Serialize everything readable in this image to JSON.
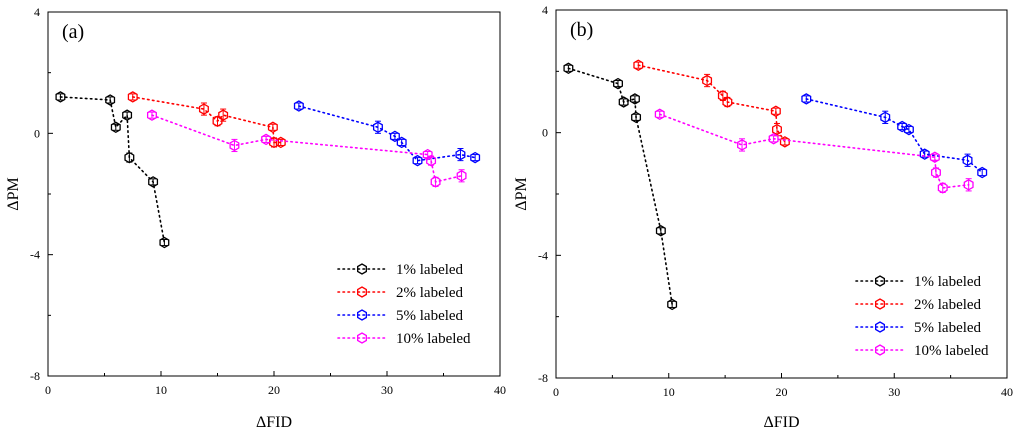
{
  "chart_data": [
    {
      "type": "scatter",
      "panel_label": "(a)",
      "xlabel": "ΔFID",
      "ylabel": "ΔPM",
      "xlim": [
        0,
        40
      ],
      "ylim": [
        -8,
        4
      ],
      "xticks": [
        "0",
        "10",
        "20",
        "30",
        "40"
      ],
      "yticks": [
        "-8",
        "-4",
        "0",
        "4"
      ],
      "legend_position": "bottom-right",
      "series": [
        {
          "name": "1% labeled",
          "color": "#000000",
          "x": [
            1.1,
            5.5,
            6.0,
            7.0,
            7.2,
            9.3,
            10.3
          ],
          "y": [
            1.2,
            1.1,
            0.2,
            0.6,
            -0.8,
            -1.6,
            -3.6
          ],
          "err": [
            0.1,
            0.1,
            0.1,
            0.1,
            0.15,
            0.1,
            0.1
          ]
        },
        {
          "name": "2% labeled",
          "color": "#ff0000",
          "x": [
            7.5,
            13.8,
            15.0,
            15.5,
            19.9,
            20.0,
            20.6
          ],
          "y": [
            1.2,
            0.8,
            0.4,
            0.6,
            0.2,
            -0.3,
            -0.3
          ],
          "err": [
            0.1,
            0.2,
            0.15,
            0.2,
            0.1,
            0.15,
            0.1
          ]
        },
        {
          "name": "5% labeled",
          "color": "#0000ff",
          "x": [
            22.2,
            29.2,
            30.7,
            31.3,
            32.7,
            36.5,
            37.8
          ],
          "y": [
            0.9,
            0.2,
            -0.1,
            -0.3,
            -0.9,
            -0.7,
            -0.8
          ],
          "err": [
            0.1,
            0.2,
            0.1,
            0.1,
            0.1,
            0.2,
            0.1
          ]
        },
        {
          "name": "10% labeled",
          "color": "#ff00ff",
          "x": [
            9.2,
            16.5,
            19.3,
            33.6,
            33.9,
            34.3,
            36.6
          ],
          "y": [
            0.6,
            -0.4,
            -0.2,
            -0.7,
            -0.9,
            -1.6,
            -1.4
          ],
          "err": [
            0.1,
            0.2,
            0.1,
            0.1,
            0.15,
            0.15,
            0.2
          ]
        }
      ]
    },
    {
      "type": "scatter",
      "panel_label": "(b)",
      "xlabel": "ΔFID",
      "ylabel": "ΔPM",
      "xlim": [
        0,
        40
      ],
      "ylim": [
        -8,
        4
      ],
      "xticks": [
        "0",
        "10",
        "20",
        "30",
        "40"
      ],
      "yticks": [
        "-8",
        "-4",
        "0",
        "4"
      ],
      "legend_position": "bottom-right",
      "series": [
        {
          "name": "1% labeled",
          "color": "#000000",
          "x": [
            1.1,
            5.5,
            6.0,
            7.0,
            7.1,
            9.3,
            10.3
          ],
          "y": [
            2.1,
            1.6,
            1.0,
            1.1,
            0.5,
            -3.2,
            -5.6
          ],
          "err": [
            0.1,
            0.1,
            0.1,
            0.1,
            0.1,
            0.1,
            0.1
          ]
        },
        {
          "name": "2% labeled",
          "color": "#ff0000",
          "x": [
            7.3,
            13.4,
            14.8,
            15.2,
            19.5,
            19.6,
            20.3
          ],
          "y": [
            2.2,
            1.7,
            1.2,
            1.0,
            0.7,
            0.1,
            -0.3
          ],
          "err": [
            0.1,
            0.2,
            0.15,
            0.15,
            0.1,
            0.2,
            0.1
          ]
        },
        {
          "name": "5% labeled",
          "color": "#0000ff",
          "x": [
            22.2,
            29.2,
            30.7,
            31.3,
            32.7,
            36.5,
            37.8
          ],
          "y": [
            1.1,
            0.5,
            0.2,
            0.1,
            -0.7,
            -0.9,
            -1.3
          ],
          "err": [
            0.1,
            0.2,
            0.1,
            0.1,
            0.1,
            0.2,
            0.1
          ]
        },
        {
          "name": "10% labeled",
          "color": "#ff00ff",
          "x": [
            9.2,
            16.5,
            19.3,
            33.6,
            33.7,
            34.3,
            36.6
          ],
          "y": [
            0.6,
            -0.4,
            -0.2,
            -0.8,
            -1.3,
            -1.8,
            -1.7
          ],
          "err": [
            0.1,
            0.2,
            0.1,
            0.1,
            0.15,
            0.15,
            0.2
          ]
        }
      ]
    }
  ]
}
